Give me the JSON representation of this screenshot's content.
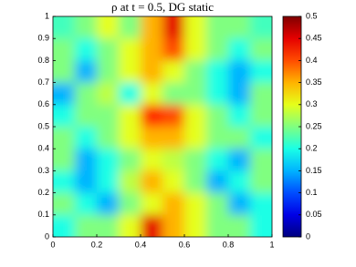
{
  "chart_data": {
    "type": "heatmap",
    "title": "ρ at t = 0.5, DG static",
    "colormap": "jet",
    "x": [
      0.05,
      0.15,
      0.25,
      0.35,
      0.45,
      0.55,
      0.65,
      0.75,
      0.85,
      0.95
    ],
    "y": [
      0.95,
      0.85,
      0.75,
      0.65,
      0.55,
      0.45,
      0.35,
      0.25,
      0.15,
      0.05
    ],
    "z": [
      [
        0.22,
        0.25,
        0.3,
        0.25,
        0.35,
        0.45,
        0.3,
        0.25,
        0.25,
        0.22
      ],
      [
        0.25,
        0.2,
        0.25,
        0.3,
        0.35,
        0.4,
        0.3,
        0.25,
        0.2,
        0.25
      ],
      [
        0.25,
        0.15,
        0.25,
        0.3,
        0.35,
        0.3,
        0.25,
        0.2,
        0.15,
        0.2
      ],
      [
        0.15,
        0.25,
        0.28,
        0.2,
        0.3,
        0.25,
        0.25,
        0.2,
        0.15,
        0.25
      ],
      [
        0.2,
        0.25,
        0.25,
        0.3,
        0.42,
        0.4,
        0.3,
        0.25,
        0.2,
        0.25
      ],
      [
        0.25,
        0.2,
        0.25,
        0.3,
        0.35,
        0.35,
        0.3,
        0.25,
        0.25,
        0.2
      ],
      [
        0.25,
        0.15,
        0.2,
        0.25,
        0.3,
        0.28,
        0.25,
        0.2,
        0.15,
        0.25
      ],
      [
        0.2,
        0.15,
        0.2,
        0.28,
        0.35,
        0.3,
        0.25,
        0.15,
        0.2,
        0.25
      ],
      [
        0.25,
        0.2,
        0.15,
        0.25,
        0.3,
        0.35,
        0.3,
        0.25,
        0.15,
        0.2
      ],
      [
        0.2,
        0.25,
        0.25,
        0.3,
        0.45,
        0.35,
        0.3,
        0.25,
        0.25,
        0.2
      ]
    ],
    "xlim": [
      0,
      1
    ],
    "ylim": [
      0,
      1
    ],
    "zlim": [
      0,
      0.5
    ],
    "xticks": [
      0,
      0.2,
      0.4,
      0.6,
      0.8,
      1
    ],
    "yticks": [
      0,
      0.1,
      0.2,
      0.3,
      0.4,
      0.5,
      0.6,
      0.7,
      0.8,
      0.9,
      1
    ],
    "colorbar_ticks": [
      0,
      0.05,
      0.1,
      0.15,
      0.2,
      0.25,
      0.3,
      0.35,
      0.4,
      0.45,
      0.5
    ]
  }
}
